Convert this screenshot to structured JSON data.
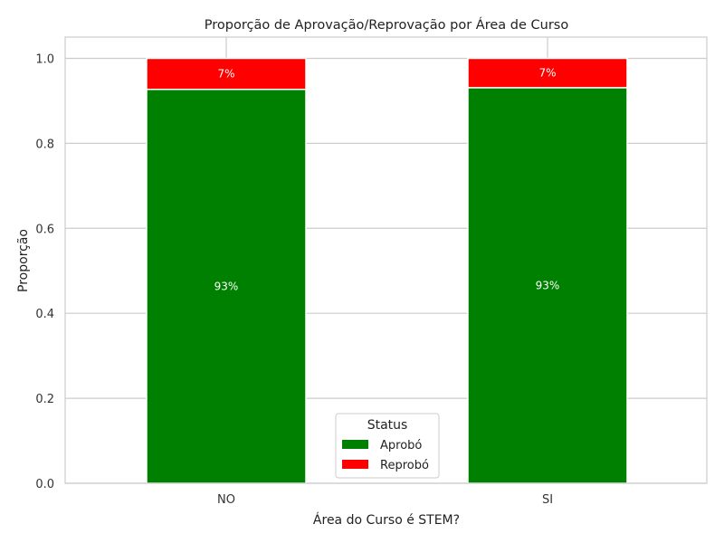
{
  "chart_data": {
    "type": "bar",
    "stacked": true,
    "title": "Proporção de Aprovação/Reprovação por Área de Curso",
    "xlabel": "Área do Curso é STEM?",
    "ylabel": "Proporção",
    "categories": [
      "NO",
      "SI"
    ],
    "series": [
      {
        "name": "Aprobó",
        "values": [
          0.927,
          0.931
        ],
        "labels": [
          "93%",
          "93%"
        ],
        "color": "#008000"
      },
      {
        "name": "Reprobó",
        "values": [
          0.073,
          0.069
        ],
        "labels": [
          "7%",
          "7%"
        ],
        "color": "#ff0000"
      }
    ],
    "ylim": [
      0,
      1.05
    ],
    "yticks": [
      0.0,
      0.2,
      0.4,
      0.6,
      0.8,
      1.0
    ],
    "ytick_labels": [
      "0.0",
      "0.2",
      "0.4",
      "0.6",
      "0.8",
      "1.0"
    ],
    "grid": true,
    "legend": {
      "title": "Status",
      "placement": "bottom-center"
    }
  },
  "colors": {
    "grid": "#cccccc",
    "frame": "#cccccc",
    "bar_edge": "#ffffff"
  }
}
